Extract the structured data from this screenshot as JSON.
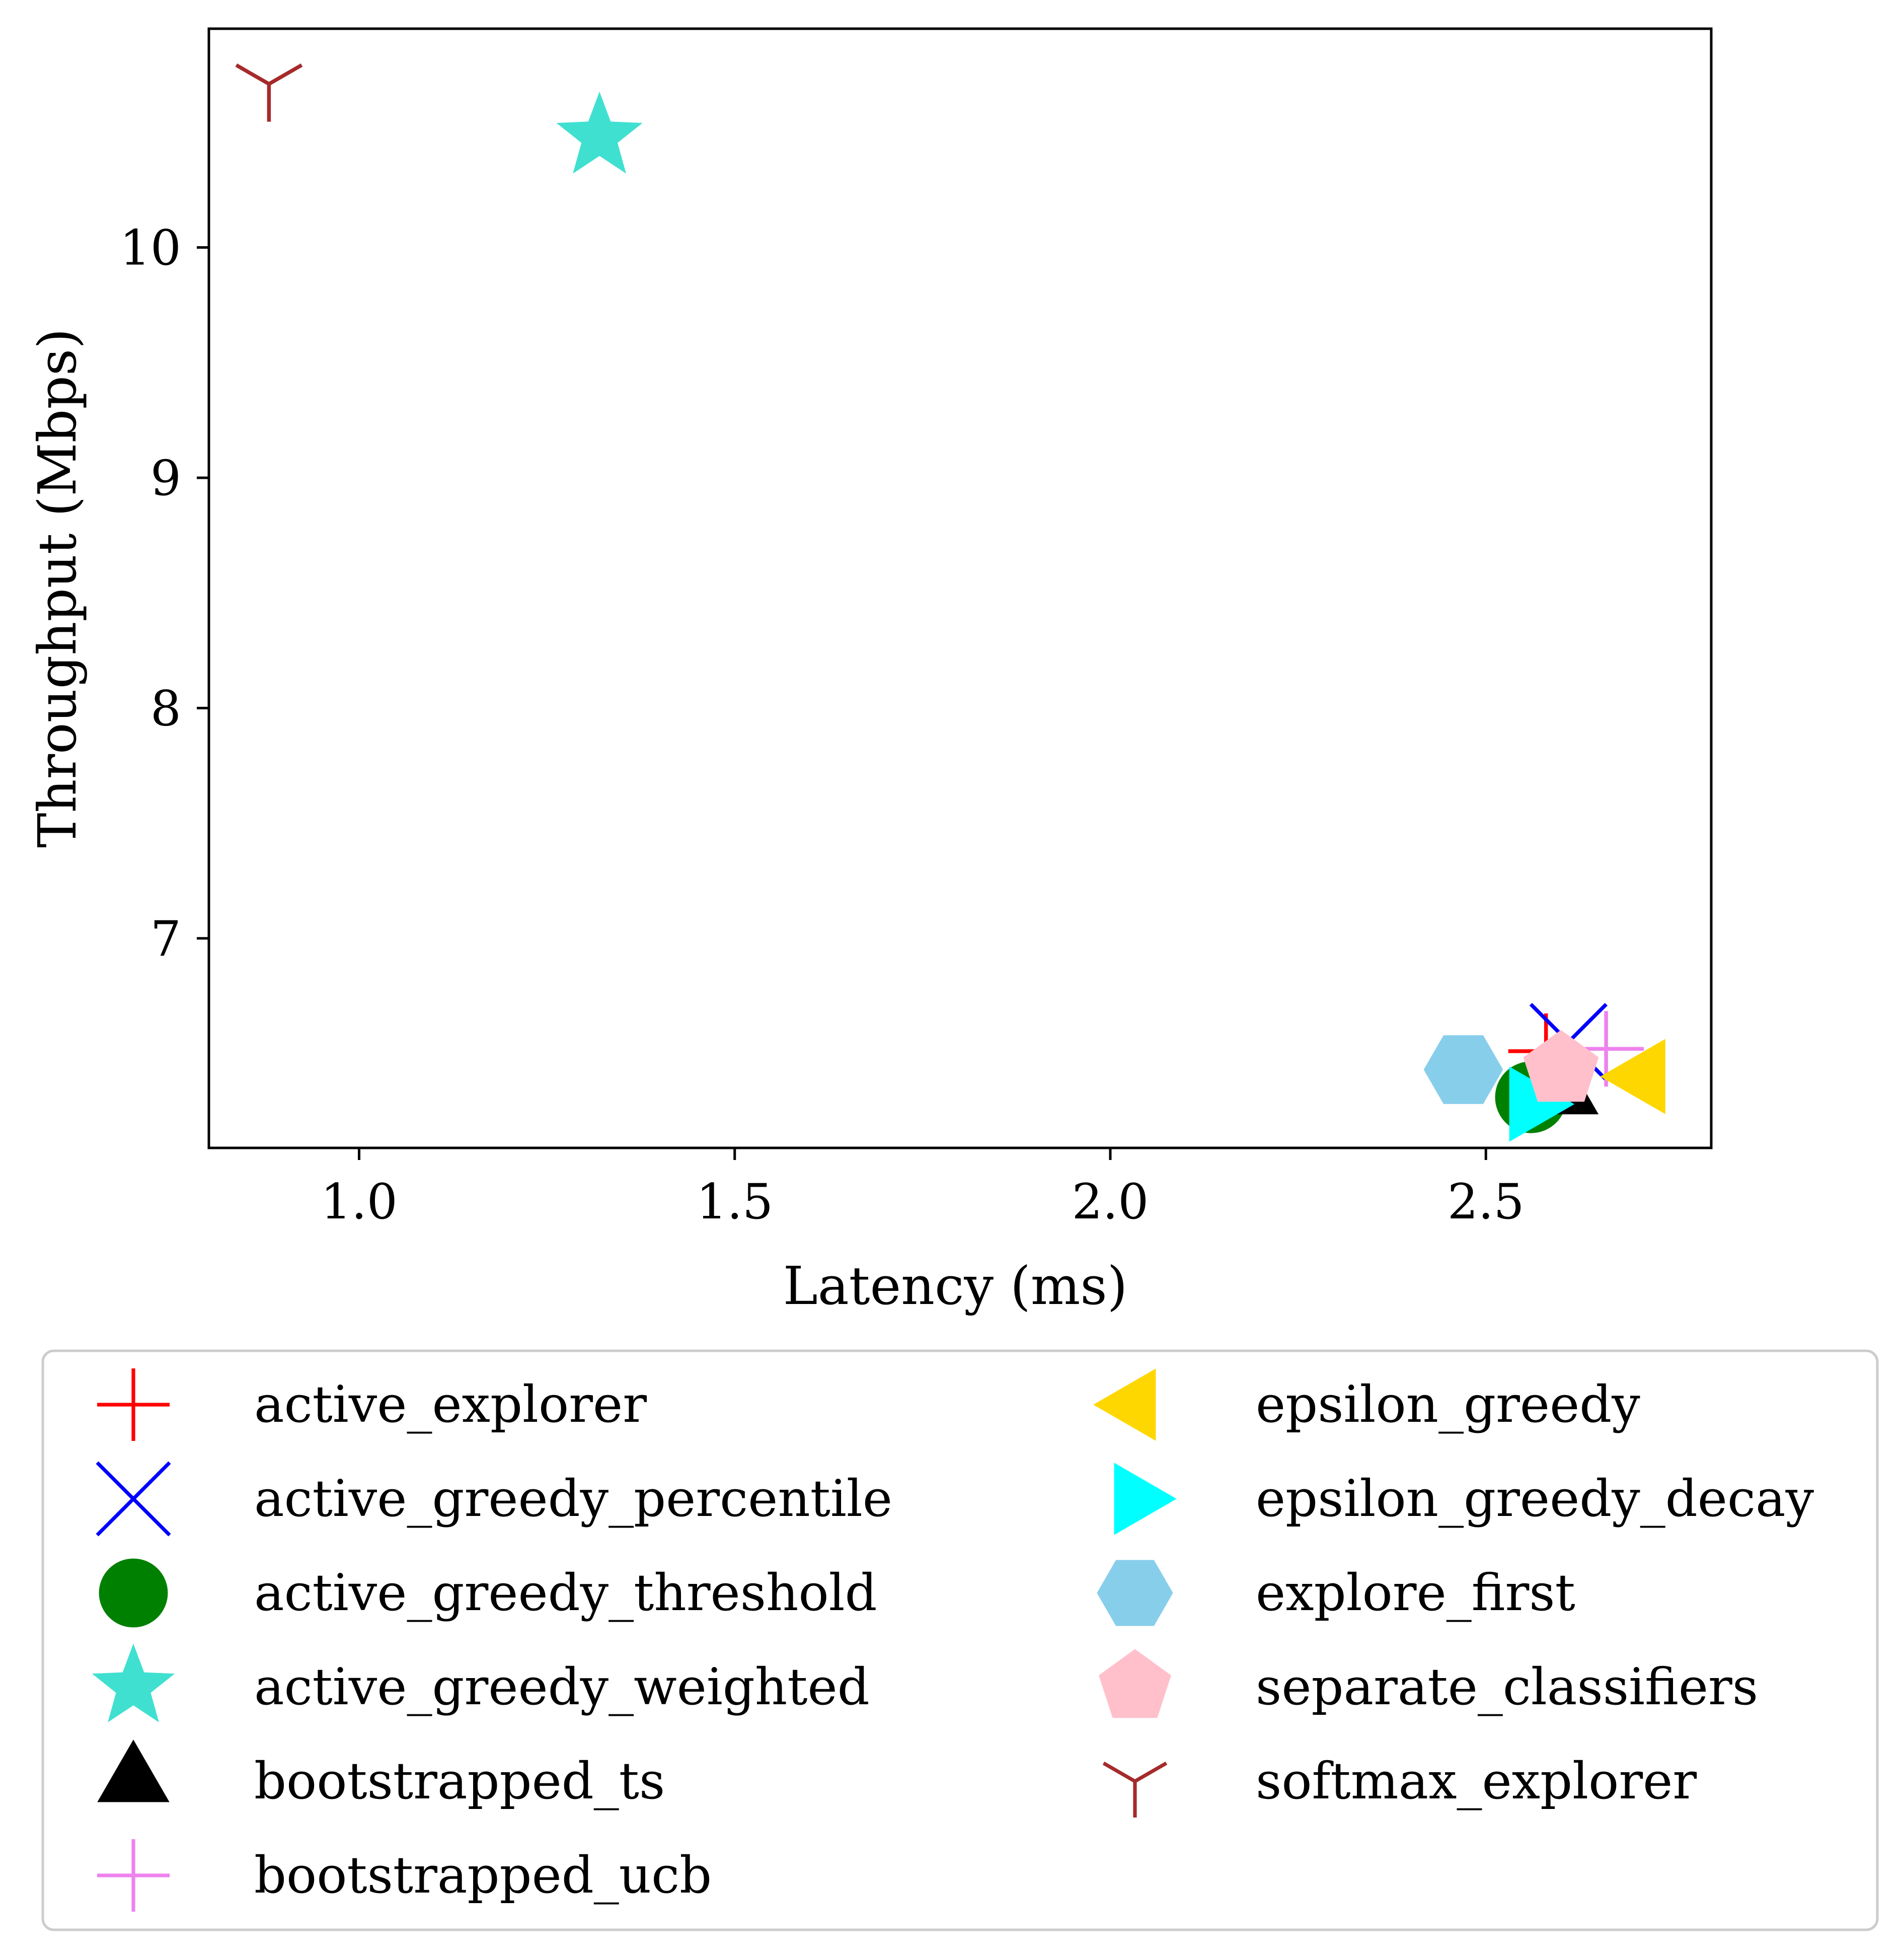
{
  "chart_data": {
    "type": "scatter",
    "title": "",
    "xlabel": "Latency (ms)",
    "ylabel": "Throughput (Mbps)",
    "xlim": [
      0.8,
      2.8
    ],
    "ylim": [
      6.09,
      10.95
    ],
    "xticks": [
      1.0,
      1.5,
      2.0,
      2.5
    ],
    "xtick_labels": [
      "1.0",
      "1.5",
      "2.0",
      "2.5"
    ],
    "yticks": [
      7,
      8,
      9,
      10
    ],
    "ytick_labels": [
      "7",
      "8",
      "9",
      "10"
    ],
    "grid": false,
    "legend_position": "bottom, outside plot, 2 columns",
    "series": [
      {
        "name": "active_explorer",
        "marker": "plus",
        "color": "#ff0000",
        "x": 2.58,
        "y": 6.51
      },
      {
        "name": "active_greedy_percentile",
        "marker": "x",
        "color": "#0000ff",
        "x": 2.61,
        "y": 6.55
      },
      {
        "name": "active_greedy_threshold",
        "marker": "circle",
        "color": "#008000",
        "x": 2.56,
        "y": 6.31
      },
      {
        "name": "active_greedy_weighted",
        "marker": "star",
        "color": "#40e0d0",
        "x": 1.32,
        "y": 10.48
      },
      {
        "name": "bootstrapped_ts",
        "marker": "triangle-up",
        "color": "#000000",
        "x": 2.6,
        "y": 6.33
      },
      {
        "name": "bootstrapped_ucb",
        "marker": "plus",
        "color": "#ee82ee",
        "x": 2.66,
        "y": 6.52
      },
      {
        "name": "epsilon_greedy",
        "marker": "triangle-left",
        "color": "#ffd700",
        "x": 2.71,
        "y": 6.4
      },
      {
        "name": "epsilon_greedy_decay",
        "marker": "triangle-right",
        "color": "#00ffff",
        "x": 2.56,
        "y": 6.28
      },
      {
        "name": "explore_first",
        "marker": "hexagon",
        "color": "#87ceeb",
        "x": 2.47,
        "y": 6.43
      },
      {
        "name": "separate_classifiers",
        "marker": "pentagon",
        "color": "#ffc0cb",
        "x": 2.6,
        "y": 6.43
      },
      {
        "name": "softmax_explorer",
        "marker": "tri-down",
        "color": "#a52a2a",
        "x": 0.88,
        "y": 10.71
      }
    ]
  }
}
